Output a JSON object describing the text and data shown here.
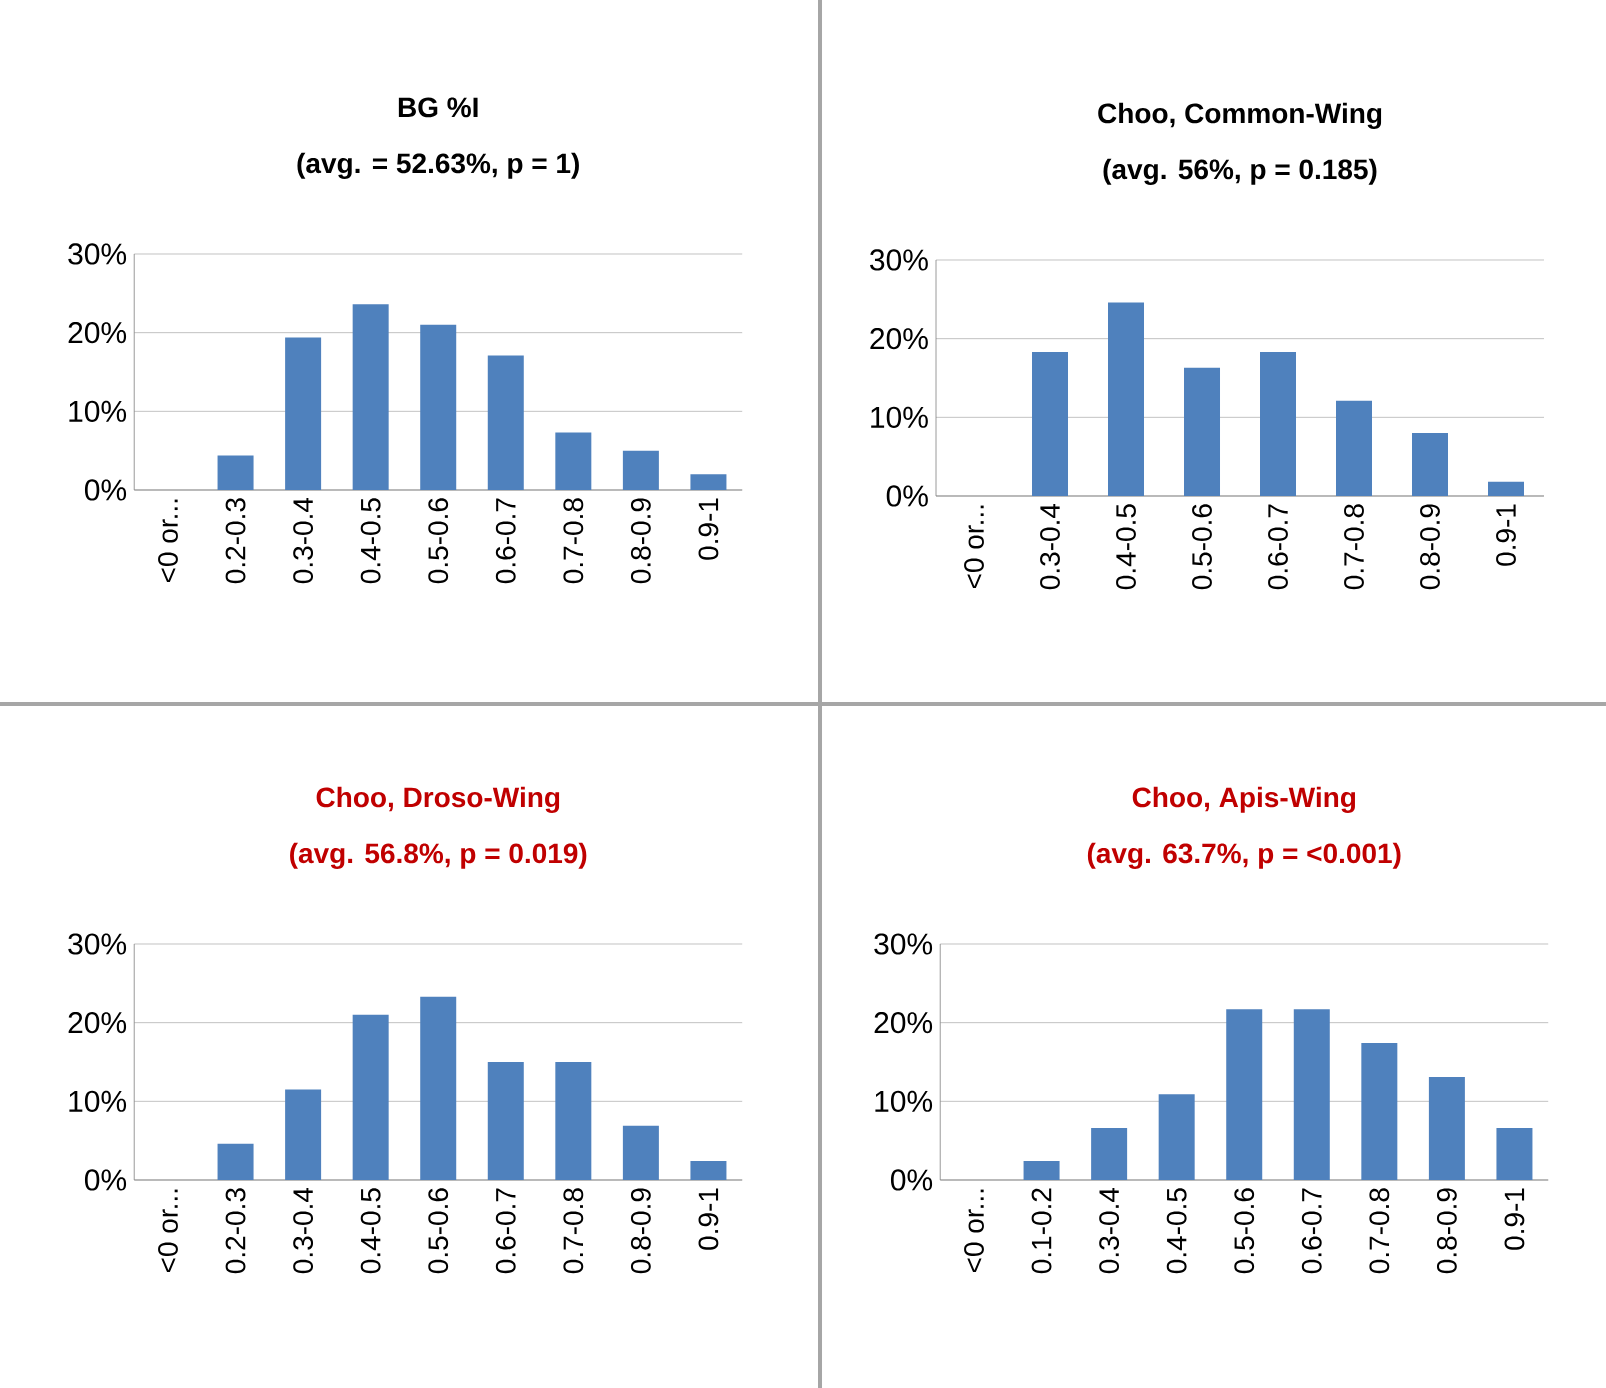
{
  "chart_data": [
    {
      "type": "bar",
      "title": "BG %I",
      "subtitle": "(avg. = 52.63%, p = 1)",
      "categories": [
        "<0 or...",
        "0.2-0.3",
        "0.3-0.4",
        "0.4-0.5",
        "0.5-0.6",
        "0.6-0.7",
        "0.7-0.8",
        "0.8-0.9",
        "0.9-1"
      ],
      "values": [
        0,
        4.4,
        19.4,
        23.6,
        21.0,
        17.1,
        7.3,
        5.0,
        2.0
      ],
      "color": "#4f81bd",
      "ylim": [
        0,
        30
      ],
      "yticks": [
        {
          "value": 0,
          "label": "0%"
        },
        {
          "value": 10,
          "label": "10%"
        },
        {
          "value": 20,
          "label": "20%"
        },
        {
          "value": 30,
          "label": "30%"
        }
      ],
      "grid": "y"
    },
    {
      "type": "bar",
      "title": "Choo, Common-Wing",
      "subtitle": "(avg. 56%, p = 0.185)",
      "categories": [
        "<0 or...",
        "0.3-0.4",
        "0.4-0.5",
        "0.5-0.6",
        "0.6-0.7",
        "0.7-0.8",
        "0.8-0.9",
        "0.9-1"
      ],
      "values": [
        0,
        18.3,
        24.6,
        16.3,
        18.3,
        12.1,
        8.0,
        1.8
      ],
      "color": "#4f81bd",
      "ylim": [
        0,
        30
      ],
      "yticks": [
        {
          "value": 0,
          "label": "0%"
        },
        {
          "value": 10,
          "label": "10%"
        },
        {
          "value": 20,
          "label": "20%"
        },
        {
          "value": 30,
          "label": "30%"
        }
      ],
      "grid": "y"
    },
    {
      "type": "bar",
      "title": "Choo, Droso-Wing",
      "subtitle": "(avg. 56.8%, p = 0.019)",
      "categories": [
        "<0 or...",
        "0.2-0.3",
        "0.3-0.4",
        "0.4-0.5",
        "0.5-0.6",
        "0.6-0.7",
        "0.7-0.8",
        "0.8-0.9",
        "0.9-1"
      ],
      "values": [
        0,
        4.6,
        11.5,
        21.0,
        23.3,
        15.0,
        15.0,
        6.9,
        2.4
      ],
      "color": "#4f81bd",
      "ylim": [
        0,
        30
      ],
      "yticks": [
        {
          "value": 0,
          "label": "0%"
        },
        {
          "value": 10,
          "label": "10%"
        },
        {
          "value": 20,
          "label": "20%"
        },
        {
          "value": 30,
          "label": "30%"
        }
      ],
      "grid": "y"
    },
    {
      "type": "bar",
      "title": "Choo, Apis-Wing",
      "subtitle": "(avg. 63.7%, p = <0.001)",
      "categories": [
        "<0 or...",
        "0.1-0.2",
        "0.3-0.4",
        "0.4-0.5",
        "0.5-0.6",
        "0.6-0.7",
        "0.7-0.8",
        "0.8-0.9",
        "0.9-1"
      ],
      "values": [
        0,
        2.4,
        6.6,
        10.9,
        21.7,
        21.7,
        17.4,
        13.1,
        6.6
      ],
      "color": "#4f81bd",
      "ylim": [
        0,
        30
      ],
      "yticks": [
        {
          "value": 0,
          "label": "0%"
        },
        {
          "value": 10,
          "label": "10%"
        },
        {
          "value": 20,
          "label": "20%"
        },
        {
          "value": 30,
          "label": "30%"
        }
      ],
      "grid": "y"
    }
  ]
}
